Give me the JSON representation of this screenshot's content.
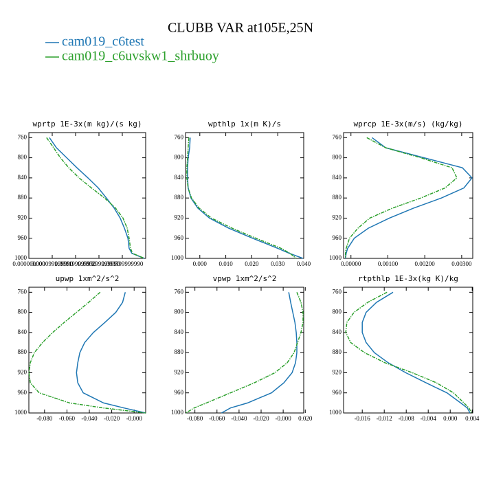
{
  "title": "CLUBB VAR at105E,25N",
  "chart_data": [
    {
      "type": "line",
      "title": "wprtp  1E-3x(m kg)/(s kg)",
      "x": [
        760,
        780,
        800,
        820,
        840,
        860,
        880,
        900,
        920,
        940,
        960,
        980,
        990,
        1000
      ],
      "ylim": [
        750,
        1000
      ],
      "yticks": [
        760,
        800,
        840,
        880,
        920,
        960,
        1000
      ],
      "xlim": [
        0,
        0.0005
      ],
      "xticks": [
        {
          "value": 0,
          "label": "0.000000000"
        },
        {
          "value": 0.0001,
          "label": "0.000099999990"
        },
        {
          "value": 0.0002,
          "label": "0.000199999990"
        },
        {
          "value": 0.0003,
          "label": "0.000299999990"
        },
        {
          "value": 0.0004,
          "label": "0.000399999990"
        }
      ],
      "series": [
        {
          "name": "cam019_c6test",
          "color": "#1f77b4",
          "values": [
            8.8e-05,
            0.000118,
            0.000162,
            0.000206,
            0.000253,
            0.000297,
            0.000332,
            0.000365,
            0.000391,
            0.000409,
            0.000424,
            0.000429,
            0.000441,
            0.000494
          ]
        },
        {
          "name": "cam019_c6uvskw1_shrbuoy",
          "color": "#2ca02c",
          "values": [
            7.6e-05,
            0.000106,
            0.000135,
            0.000171,
            0.000215,
            0.000268,
            0.000324,
            0.000371,
            0.000403,
            0.000421,
            0.000429,
            0.000435,
            0.000444,
            0.000494
          ]
        }
      ]
    },
    {
      "type": "line",
      "title": "wpthlp  1x(m K)/s",
      "x": [
        760,
        780,
        800,
        820,
        840,
        860,
        880,
        900,
        920,
        940,
        960,
        980,
        990,
        1000
      ],
      "ylim": [
        750,
        1000
      ],
      "yticks": [
        760,
        800,
        840,
        880,
        920,
        960,
        1000
      ],
      "xlim": [
        -0.0055,
        0.04
      ],
      "xticks": [
        {
          "value": 0,
          "label": "0.000"
        },
        {
          "value": 0.01,
          "label": "0.010"
        },
        {
          "value": 0.02,
          "label": "0.020"
        },
        {
          "value": 0.03,
          "label": "0.030"
        },
        {
          "value": 0.04,
          "label": "0.040"
        }
      ],
      "series": [
        {
          "name": "cam019_c6test",
          "color": "#1f77b4",
          "values": [
            -0.0037,
            -0.0039,
            -0.0045,
            -0.0047,
            -0.0047,
            -0.0045,
            -0.0034,
            -0.0008,
            0.0037,
            0.0111,
            0.0203,
            0.03,
            0.0345,
            0.0397
          ]
        },
        {
          "name": "cam019_c6uvskw1_shrbuoy",
          "color": "#2ca02c",
          "values": [
            -0.0042,
            -0.0045,
            -0.0047,
            -0.005,
            -0.005,
            -0.0045,
            -0.0032,
            -0.0003,
            0.0045,
            0.0124,
            0.0216,
            0.0313,
            0.0347,
            0.0371
          ]
        }
      ]
    },
    {
      "type": "line",
      "title": "wprcp  1E-3x(m/s) (kg/kg)",
      "x": [
        760,
        780,
        800,
        820,
        840,
        860,
        880,
        900,
        920,
        940,
        960,
        980,
        990,
        1000
      ],
      "ylim": [
        750,
        1000
      ],
      "yticks": [
        760,
        800,
        840,
        880,
        920,
        960,
        1000
      ],
      "xlim": [
        -0.0002,
        0.0033
      ],
      "xticks": [
        {
          "value": 0,
          "label": "0.00000"
        },
        {
          "value": 0.001,
          "label": "0.00100"
        },
        {
          "value": 0.002,
          "label": "0.00200"
        },
        {
          "value": 0.003,
          "label": "0.00300"
        }
      ],
      "series": [
        {
          "name": "cam019_c6test",
          "color": "#1f77b4",
          "values": [
            0.00057,
            0.00094,
            0.00198,
            0.00302,
            0.00328,
            0.00306,
            0.00245,
            0.0017,
            0.00104,
            0.00047,
            9e-05,
            -9e-05,
            -0.00013,
            -0.00015
          ]
        },
        {
          "name": "cam019_c6uvskw1_shrbuoy",
          "color": "#2ca02c",
          "values": [
            0.00043,
            0.00094,
            0.00189,
            0.00274,
            0.00287,
            0.00255,
            0.00189,
            0.00113,
            0.00051,
            0.00019,
            -4e-05,
            -0.00013,
            -0.00015,
            -0.00015
          ]
        }
      ]
    },
    {
      "type": "line",
      "title": "upwp  1xm^2/s^2",
      "x": [
        760,
        780,
        800,
        820,
        840,
        860,
        880,
        900,
        920,
        940,
        960,
        980,
        990,
        1000
      ],
      "ylim": [
        750,
        1000
      ],
      "yticks": [
        760,
        800,
        840,
        880,
        920,
        960,
        1000
      ],
      "xlim": [
        -0.094,
        0.0103
      ],
      "xticks": [
        {
          "value": -0.08,
          "label": "-0.080"
        },
        {
          "value": -0.06,
          "label": "-0.060"
        },
        {
          "value": -0.04,
          "label": "-0.040"
        },
        {
          "value": -0.02,
          "label": "-0.020"
        },
        {
          "value": 0,
          "label": "-0.000"
        }
      ],
      "series": [
        {
          "name": "cam019_c6test",
          "color": "#1f77b4",
          "values": [
            -0.0079,
            -0.0103,
            -0.0164,
            -0.0261,
            -0.0364,
            -0.0442,
            -0.0485,
            -0.0503,
            -0.0515,
            -0.0503,
            -0.0455,
            -0.0273,
            -0.0091,
            0.0103
          ]
        },
        {
          "name": "cam019_c6uvskw1_shrbuoy",
          "color": "#2ca02c",
          "values": [
            -0.0303,
            -0.0406,
            -0.0515,
            -0.0624,
            -0.0727,
            -0.0818,
            -0.0891,
            -0.0927,
            -0.0939,
            -0.0927,
            -0.0848,
            -0.0576,
            -0.0273,
            0.0103
          ]
        }
      ]
    },
    {
      "type": "line",
      "title": "vpwp  1xm^2/s^2",
      "x": [
        760,
        780,
        800,
        820,
        840,
        860,
        880,
        900,
        920,
        940,
        960,
        980,
        990,
        1000
      ],
      "ylim": [
        750,
        1000
      ],
      "yticks": [
        760,
        800,
        840,
        880,
        920,
        960,
        1000
      ],
      "xlim": [
        -0.0885,
        0.0186
      ],
      "xticks": [
        {
          "value": -0.08,
          "label": "-0.080"
        },
        {
          "value": -0.06,
          "label": "-0.060"
        },
        {
          "value": -0.04,
          "label": "-0.040"
        },
        {
          "value": -0.02,
          "label": "-0.020"
        },
        {
          "value": 0,
          "label": "-0.000"
        },
        {
          "value": 0.02,
          "label": "0.020"
        }
      ],
      "series": [
        {
          "name": "cam019_c6test",
          "color": "#1f77b4",
          "values": [
            0.005,
            0.0068,
            0.0087,
            0.0106,
            0.0118,
            0.0124,
            0.0124,
            0.0112,
            0.0081,
            0.0006,
            -0.0106,
            -0.0323,
            -0.0478,
            -0.0559
          ]
        },
        {
          "name": "cam019_c6uvskw1_shrbuoy",
          "color": "#2ca02c",
          "values": [
            0.0124,
            0.0161,
            0.018,
            0.018,
            0.0161,
            0.013,
            0.0099,
            0.0037,
            -0.0075,
            -0.0261,
            -0.0478,
            -0.0696,
            -0.0807,
            -0.0882
          ]
        }
      ]
    },
    {
      "type": "line",
      "title": "rtpthlp  1E-3x(kg K)/kg",
      "x": [
        760,
        780,
        800,
        820,
        840,
        860,
        880,
        900,
        920,
        940,
        960,
        980,
        990,
        1000
      ],
      "ylim": [
        750,
        1000
      ],
      "yticks": [
        760,
        800,
        840,
        880,
        920,
        960,
        1000
      ],
      "xlim": [
        -0.0194,
        0.0041
      ],
      "xticks": [
        {
          "value": -0.016,
          "label": "-0.016"
        },
        {
          "value": -0.012,
          "label": "-0.012"
        },
        {
          "value": -0.008,
          "label": "-0.008"
        },
        {
          "value": -0.004,
          "label": "-0.004"
        },
        {
          "value": 0,
          "label": "0.000"
        },
        {
          "value": 0.004,
          "label": "0.004"
        }
      ],
      "series": [
        {
          "name": "cam019_c6test",
          "color": "#1f77b4",
          "values": [
            -0.0104,
            -0.0134,
            -0.0153,
            -0.016,
            -0.016,
            -0.0153,
            -0.0138,
            -0.0113,
            -0.0081,
            -0.0044,
            -0.0006,
            0.0019,
            0.0031,
            0.0036
          ]
        },
        {
          "name": "cam019_c6uvskw1_shrbuoy",
          "color": "#2ca02c",
          "values": [
            -0.0115,
            -0.015,
            -0.0175,
            -0.0188,
            -0.019,
            -0.0181,
            -0.0156,
            -0.0119,
            -0.0069,
            -0.0025,
            0.0006,
            0.0025,
            0.0034,
            0.0039
          ]
        }
      ]
    }
  ]
}
